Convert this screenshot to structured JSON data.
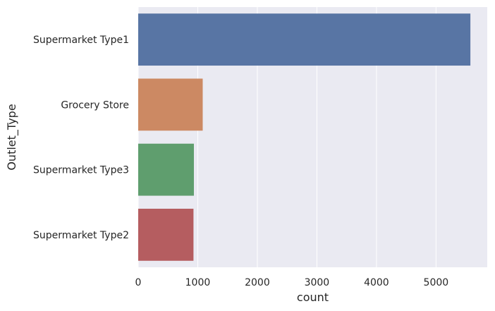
{
  "chart_data": {
    "type": "bar",
    "orientation": "horizontal",
    "categories": [
      "Supermarket Type1",
      "Grocery Store",
      "Supermarket Type3",
      "Supermarket Type2"
    ],
    "values": [
      5577,
      1083,
      935,
      928
    ],
    "colors": [
      "#5875a4",
      "#cc8963",
      "#5f9e6e",
      "#b55d60"
    ],
    "xlabel": "count",
    "ylabel": "Outlet_Type",
    "xlim": [
      0,
      5860
    ],
    "xticks": [
      0,
      1000,
      2000,
      3000,
      4000,
      5000
    ],
    "grid": true,
    "background": "#eaeaf2"
  }
}
